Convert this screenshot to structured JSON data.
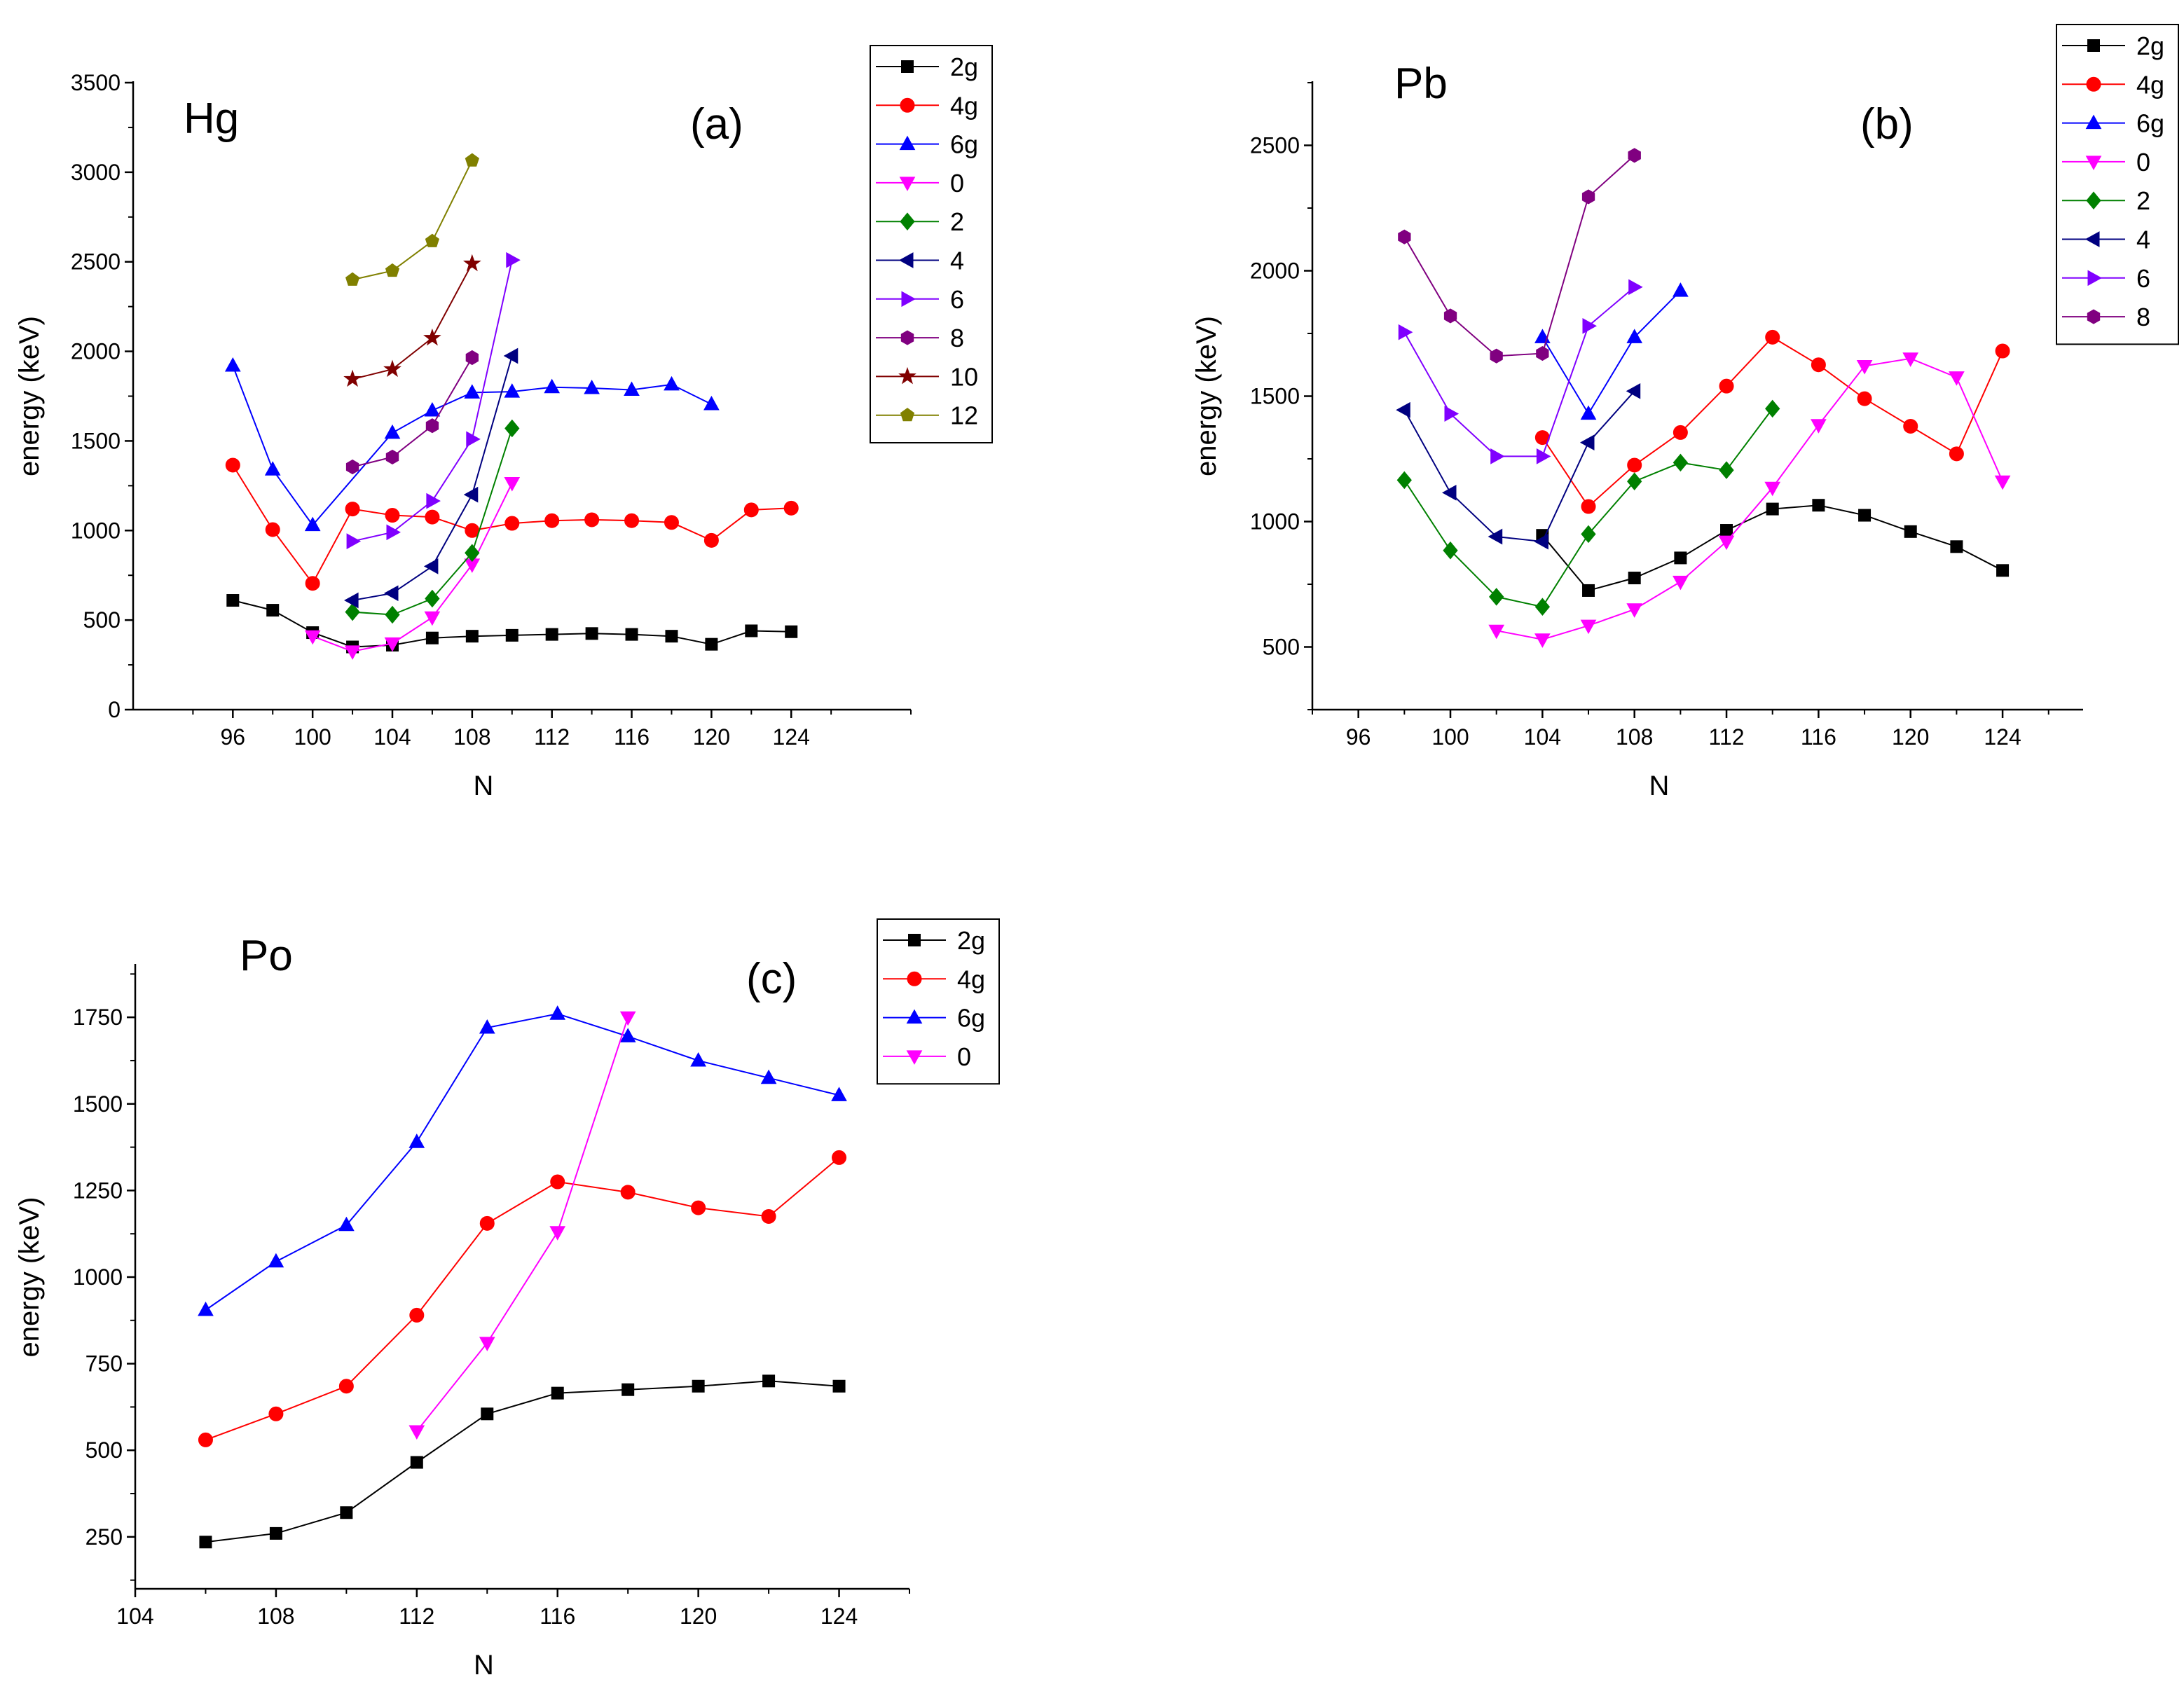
{
  "chart_data": [
    {
      "id": "hg",
      "type": "line",
      "title": "Hg",
      "panel_label": "(a)",
      "xlabel": "N",
      "ylabel": "energy (keV)",
      "xlim": [
        91,
        130
      ],
      "ylim": [
        0,
        3500
      ],
      "xticks": [
        96,
        100,
        104,
        108,
        112,
        116,
        120,
        124
      ],
      "yticks": [
        0,
        500,
        1000,
        1500,
        2000,
        2500,
        3000,
        3500
      ],
      "legend_position": "top-right",
      "series": [
        {
          "name": "2g",
          "color": "#000000",
          "marker": "square",
          "x": [
            96,
            98,
            100,
            102,
            104,
            106,
            108,
            110,
            112,
            114,
            116,
            118,
            120,
            122,
            124
          ],
          "y": [
            610,
            555,
            430,
            350,
            360,
            400,
            410,
            415,
            420,
            425,
            420,
            410,
            365,
            440,
            435
          ]
        },
        {
          "name": "4g",
          "color": "#ff0000",
          "marker": "circle",
          "x": [
            96,
            98,
            100,
            102,
            104,
            106,
            108,
            110,
            112,
            114,
            116,
            118,
            120,
            122,
            124
          ],
          "y": [
            1365,
            1005,
            705,
            1120,
            1085,
            1075,
            1000,
            1040,
            1055,
            1060,
            1055,
            1045,
            945,
            1115,
            1125
          ]
        },
        {
          "name": "6g",
          "color": "#0000ff",
          "marker": "triangle-up",
          "x": [
            96,
            98,
            100,
            104,
            106,
            108,
            110,
            112,
            114,
            116,
            118,
            120
          ],
          "y": [
            1920,
            1340,
            1030,
            1545,
            1670,
            1770,
            1775,
            1800,
            1795,
            1785,
            1815,
            1705
          ]
        },
        {
          "name": "0",
          "color": "#ff00ff",
          "marker": "triangle-down",
          "x": [
            100,
            102,
            104,
            106,
            108,
            110
          ],
          "y": [
            410,
            325,
            370,
            515,
            810,
            1265
          ]
        },
        {
          "name": "2",
          "color": "#008000",
          "marker": "diamond",
          "x": [
            102,
            104,
            106,
            108,
            110
          ],
          "y": [
            545,
            530,
            620,
            875,
            1570
          ]
        },
        {
          "name": "4",
          "color": "#000080",
          "marker": "triangle-left",
          "x": [
            102,
            104,
            106,
            108,
            110
          ],
          "y": [
            610,
            650,
            800,
            1200,
            1975
          ]
        },
        {
          "name": "6",
          "color": "#8000ff",
          "marker": "triangle-right",
          "x": [
            102,
            104,
            106,
            108,
            110
          ],
          "y": [
            940,
            990,
            1165,
            1510,
            2510
          ]
        },
        {
          "name": "8",
          "color": "#800080",
          "marker": "hexagon",
          "x": [
            102,
            104,
            106,
            108
          ],
          "y": [
            1355,
            1410,
            1585,
            1965
          ]
        },
        {
          "name": "10",
          "color": "#800000",
          "marker": "star",
          "x": [
            102,
            104,
            106,
            108
          ],
          "y": [
            1845,
            1900,
            2075,
            2490
          ]
        },
        {
          "name": "12",
          "color": "#808000",
          "marker": "pentagon",
          "x": [
            102,
            104,
            106,
            108
          ],
          "y": [
            2400,
            2450,
            2615,
            3065
          ]
        }
      ]
    },
    {
      "id": "pb",
      "type": "line",
      "title": "Pb",
      "panel_label": "(b)",
      "xlabel": "N",
      "ylabel": "energy (keV)",
      "xlim": [
        94,
        127.5
      ],
      "ylim": [
        250,
        2750
      ],
      "xticks": [
        96,
        100,
        104,
        108,
        112,
        116,
        120,
        124
      ],
      "yticks": [
        500,
        1000,
        1500,
        2000,
        2500
      ],
      "legend_position": "top-right",
      "series": [
        {
          "name": "2g",
          "color": "#000000",
          "marker": "square",
          "x": [
            104,
            106,
            108,
            110,
            112,
            114,
            116,
            118,
            120,
            122,
            124
          ],
          "y": [
            945,
            725,
            775,
            855,
            965,
            1050,
            1065,
            1025,
            960,
            900,
            805
          ]
        },
        {
          "name": "4g",
          "color": "#ff0000",
          "marker": "circle",
          "x": [
            104,
            106,
            108,
            110,
            112,
            114,
            116,
            118,
            120,
            122,
            124
          ],
          "y": [
            1335,
            1060,
            1225,
            1355,
            1540,
            1735,
            1625,
            1490,
            1380,
            1270,
            1680
          ]
        },
        {
          "name": "6g",
          "color": "#0000ff",
          "marker": "triangle-up",
          "x": [
            104,
            106,
            108,
            110
          ],
          "y": [
            1735,
            1430,
            1735,
            1920
          ]
        },
        {
          "name": "0",
          "color": "#ff00ff",
          "marker": "triangle-down",
          "x": [
            102,
            104,
            106,
            108,
            110,
            112,
            114,
            116,
            118,
            120,
            122,
            124
          ],
          "y": [
            565,
            530,
            585,
            650,
            760,
            920,
            1135,
            1385,
            1620,
            1650,
            1575,
            1160
          ]
        },
        {
          "name": "2",
          "color": "#008000",
          "marker": "diamond",
          "x": [
            98,
            100,
            102,
            104,
            106,
            108,
            110,
            112,
            114
          ],
          "y": [
            1165,
            885,
            700,
            660,
            950,
            1160,
            1235,
            1205,
            1450
          ]
        },
        {
          "name": "4",
          "color": "#000080",
          "marker": "triangle-left",
          "x": [
            98,
            100,
            102,
            104,
            106,
            108
          ],
          "y": [
            1445,
            1115,
            940,
            920,
            1315,
            1520
          ]
        },
        {
          "name": "6",
          "color": "#8000ff",
          "marker": "triangle-right",
          "x": [
            98,
            100,
            102,
            104,
            106,
            108
          ],
          "y": [
            1755,
            1430,
            1260,
            1260,
            1780,
            1935
          ]
        },
        {
          "name": "8",
          "color": "#800080",
          "marker": "hexagon",
          "x": [
            98,
            100,
            102,
            104,
            106,
            108
          ],
          "y": [
            2135,
            1820,
            1660,
            1670,
            2295,
            2460
          ]
        }
      ]
    },
    {
      "id": "po",
      "type": "line",
      "title": "Po",
      "panel_label": "(c)",
      "xlabel": "N",
      "ylabel": "energy (keV)",
      "xlim": [
        104,
        126
      ],
      "ylim": [
        100,
        1900
      ],
      "xticks": [
        104,
        108,
        112,
        116,
        120,
        124
      ],
      "yticks": [
        250,
        500,
        750,
        1000,
        1250,
        1500,
        1750
      ],
      "legend_position": "top-right",
      "series": [
        {
          "name": "2g",
          "color": "#000000",
          "marker": "square",
          "x": [
            106,
            108,
            110,
            112,
            114,
            116,
            118,
            120,
            122,
            124
          ],
          "y": [
            235,
            260,
            320,
            465,
            605,
            665,
            675,
            685,
            700,
            685
          ]
        },
        {
          "name": "4g",
          "color": "#ff0000",
          "marker": "circle",
          "x": [
            106,
            108,
            110,
            112,
            114,
            116,
            118,
            120,
            122,
            124
          ],
          "y": [
            530,
            605,
            685,
            890,
            1155,
            1275,
            1245,
            1200,
            1175,
            1345
          ]
        },
        {
          "name": "6g",
          "color": "#0000ff",
          "marker": "triangle-up",
          "x": [
            106,
            108,
            110,
            112,
            114,
            116,
            118,
            120,
            122,
            124
          ],
          "y": [
            905,
            1045,
            1150,
            1390,
            1720,
            1760,
            1695,
            1625,
            1575,
            1525
          ]
        },
        {
          "name": "0",
          "color": "#ff00ff",
          "marker": "triangle-down",
          "x": [
            112,
            114,
            116,
            118
          ],
          "y": [
            555,
            810,
            1130,
            1750
          ]
        }
      ]
    }
  ]
}
